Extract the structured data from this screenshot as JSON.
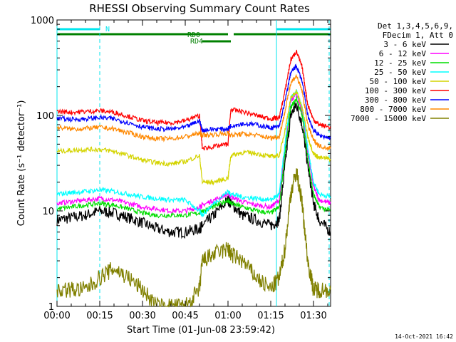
{
  "chart_data": {
    "type": "line",
    "title": "RHESSI Observing Summary Count Rates",
    "xlabel": "Start Time (01-Jun-08 23:59:42)",
    "ylabel": "Count Rate (s⁻¹ detector⁻¹)",
    "yscale": "log",
    "ylim": [
      1,
      1000
    ],
    "xlim_minutes": [
      0,
      96
    ],
    "x_ticks": [
      "00:00",
      "00:15",
      "00:30",
      "00:45",
      "01:00",
      "01:15",
      "01:30"
    ],
    "y_ticks": [
      "1",
      "10",
      "100",
      "1000"
    ],
    "legend_header": [
      "Det 1,3,4,5,6,9,",
      "FDecim 1, Att 0"
    ],
    "legend_placement": "right",
    "grid": false,
    "timestamp": "14-Oct-2021 16:42",
    "flags": [
      {
        "label": "N",
        "color": "#00e5ee",
        "segments": [
          [
            0,
            15
          ],
          [
            77,
            96
          ]
        ]
      },
      {
        "label": "RD0",
        "color": "#008000",
        "segments": [
          [
            0,
            60
          ],
          [
            62,
            96
          ]
        ]
      },
      {
        "label": "RD4",
        "color": "#008000",
        "segments": [
          [
            51,
            61
          ]
        ]
      }
    ],
    "night_boundaries_minutes": [
      0,
      15,
      77,
      95.5
    ],
    "x_minutes": [
      0,
      5,
      10,
      15,
      20,
      25,
      30,
      35,
      40,
      45,
      50,
      51,
      55,
      60,
      61,
      65,
      70,
      75,
      78,
      80,
      82,
      84,
      86,
      88,
      90,
      92,
      96
    ],
    "series": [
      {
        "name": "3 - 6 keV",
        "color": "#000000",
        "values": [
          8,
          8.5,
          9,
          10,
          9.5,
          8.5,
          7.5,
          6.5,
          6,
          6,
          6.5,
          7,
          9,
          13,
          12,
          9,
          8,
          7,
          8,
          30,
          100,
          130,
          80,
          30,
          12,
          8,
          6
        ]
      },
      {
        "name": "6 - 12 keV",
        "color": "#ff00ff",
        "values": [
          12,
          12.5,
          13,
          13.5,
          13,
          12,
          11,
          10.5,
          10,
          10,
          11,
          11.5,
          13,
          15,
          14,
          12.5,
          11.5,
          11,
          13,
          45,
          140,
          170,
          110,
          40,
          18,
          13,
          12
        ]
      },
      {
        "name": "12 - 25 keV",
        "color": "#00dd00",
        "values": [
          10.5,
          11,
          11.5,
          12,
          11.5,
          10.5,
          9.5,
          9,
          9,
          9,
          9.5,
          10,
          11,
          13,
          12,
          11,
          10,
          9.5,
          11,
          40,
          120,
          150,
          100,
          35,
          15,
          11,
          10
        ]
      },
      {
        "name": "25 - 50 keV",
        "color": "#00ffff",
        "values": [
          15,
          15.5,
          16,
          16.5,
          16,
          15,
          14,
          13.5,
          13,
          13,
          10,
          9,
          12,
          16,
          15,
          14,
          13.5,
          13,
          15,
          50,
          150,
          180,
          120,
          45,
          20,
          15,
          14
        ]
      },
      {
        "name": "50 - 100 keV",
        "color": "#d4d400",
        "values": [
          42,
          43,
          44,
          44,
          42,
          38,
          34,
          32,
          31,
          33,
          38,
          20,
          20,
          22,
          38,
          41,
          40,
          37,
          38,
          70,
          150,
          180,
          120,
          60,
          40,
          36,
          35
        ]
      },
      {
        "name": "100 - 300 keV",
        "color": "#ff0000",
        "values": [
          110,
          108,
          110,
          112,
          108,
          98,
          88,
          84,
          84,
          88,
          100,
          45,
          47,
          50,
          115,
          110,
          100,
          92,
          95,
          180,
          380,
          470,
          320,
          130,
          90,
          80,
          75
        ]
      },
      {
        "name": "300 - 800 keV",
        "color": "#0000ff",
        "values": [
          93,
          91,
          92,
          95,
          92,
          84,
          76,
          72,
          72,
          75,
          88,
          70,
          72,
          72,
          78,
          82,
          80,
          74,
          76,
          140,
          280,
          330,
          230,
          100,
          70,
          62,
          58
        ]
      },
      {
        "name": "800 - 7000 keV",
        "color": "#ff8800",
        "values": [
          75,
          72,
          73,
          75,
          72,
          66,
          60,
          57,
          57,
          60,
          65,
          62,
          63,
          65,
          62,
          64,
          62,
          58,
          60,
          110,
          220,
          260,
          180,
          80,
          55,
          48,
          45
        ]
      },
      {
        "name": "7000 - 15000 keV",
        "color": "#808000",
        "values": [
          1.5,
          1.5,
          1.5,
          2,
          2.5,
          2,
          1.5,
          1,
          1,
          1,
          1.5,
          3,
          3.5,
          4,
          3.5,
          3,
          2,
          1.5,
          2,
          4,
          15,
          26,
          12,
          3,
          1.5,
          1.5,
          1.5
        ]
      }
    ]
  }
}
